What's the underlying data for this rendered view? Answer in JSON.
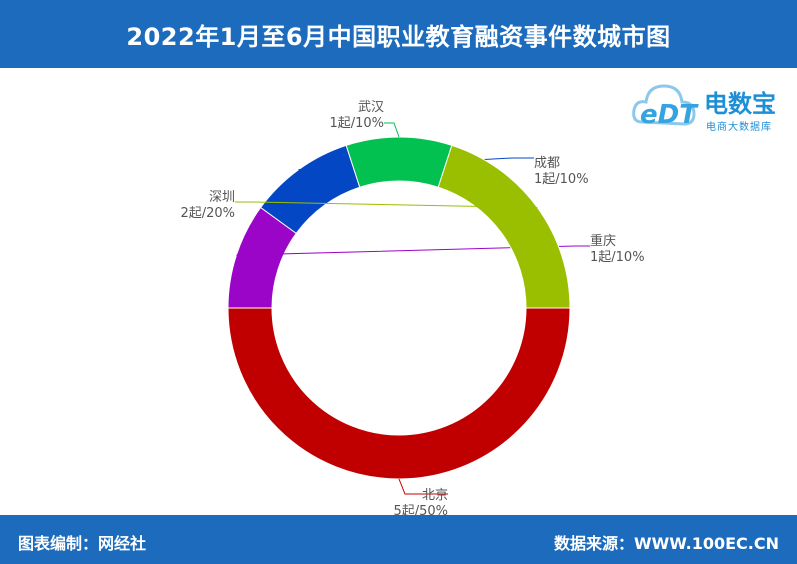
{
  "header": {
    "title": "2022年1月至6月中国职业教育融资事件数城市图"
  },
  "footer": {
    "left": "图表编制：网经社",
    "right": "数据来源：WWW.100EC.CN"
  },
  "logo": {
    "name": "电数宝",
    "subtitle": "电商大数据库",
    "mark": "eDT"
  },
  "chart_data": {
    "type": "pie",
    "donut": true,
    "categories": [
      "北京",
      "重庆",
      "成都",
      "武汉",
      "深圳"
    ],
    "values": [
      5,
      1,
      1,
      1,
      2
    ],
    "percent": [
      50,
      10,
      10,
      10,
      20
    ],
    "labels": [
      "5起/50%",
      "1起/10%",
      "1起/10%",
      "1起/10%",
      "2起/20%"
    ],
    "colors": [
      "#c00000",
      "#9a05c8",
      "#0447c4",
      "#03c150",
      "#99bf00"
    ]
  }
}
